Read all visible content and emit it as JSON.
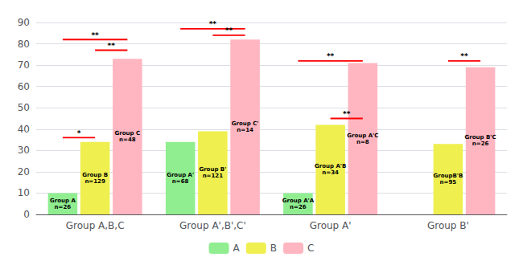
{
  "chart_data": {
    "type": "bar",
    "categories": [
      "Group A,B,C",
      "Group A',B',C'",
      "Group A'",
      "Group B'"
    ],
    "series": [
      {
        "name": "A",
        "color": "#90EE90",
        "values": [
          10,
          34,
          10,
          null
        ],
        "labels": [
          "Group A\nn=26",
          "Group A'\nn=68",
          "Group A'A\nn=26",
          null
        ]
      },
      {
        "name": "B",
        "color": "#EFEF50",
        "values": [
          34,
          39,
          42,
          33
        ],
        "labels": [
          "Group B\nn=129",
          "Group B'\nn=121",
          "Group A'B\nn=34",
          "GroupB'B\nn=95"
        ]
      },
      {
        "name": "C",
        "color": "#FFB6C1",
        "values": [
          73,
          82,
          71,
          69
        ],
        "labels": [
          "Group C\nn=48",
          "Group C'\nn=14",
          "Group A'C\nn=8",
          "Group B'C\nn=26"
        ]
      }
    ],
    "ylim": [
      0,
      90
    ],
    "yticks": [
      0,
      10,
      20,
      30,
      40,
      50,
      60,
      70,
      80,
      90
    ],
    "grid": true,
    "legend": "bottom",
    "significance": [
      {
        "category": "Group A,B,C",
        "from": "A",
        "to": "C",
        "y": 82,
        "label": "**",
        "color": "red"
      },
      {
        "category": "Group A,B,C",
        "from": "B",
        "to": "C",
        "y": 77,
        "label": "**",
        "color": "red"
      },
      {
        "category": "Group A,B,C",
        "from": "A",
        "to": "B",
        "y": 36,
        "label": "*",
        "color": "red"
      },
      {
        "category": "Group A',B',C'",
        "from": "A",
        "to": "C",
        "y": 87,
        "label": "**",
        "color": "red"
      },
      {
        "category": "Group A',B',C'",
        "from": "B",
        "to": "C",
        "y": 84,
        "label": "**",
        "color": "red"
      },
      {
        "category": "Group A'",
        "from": "A",
        "to": "C",
        "y": 72,
        "label": "**",
        "color": "red"
      },
      {
        "category": "Group A'",
        "from": "B",
        "to": "C",
        "y": 45,
        "label": "**",
        "color": "red"
      },
      {
        "category": "Group B'",
        "from": "B",
        "to": "C",
        "y": 72,
        "label": "**",
        "color": "red"
      }
    ]
  }
}
